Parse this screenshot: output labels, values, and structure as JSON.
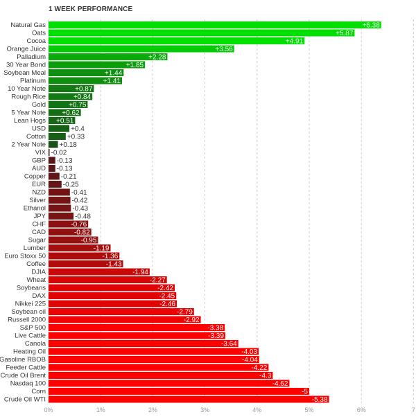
{
  "chart_data": {
    "type": "bar",
    "orientation": "horizontal",
    "title": "1 WEEK PERFORMANCE",
    "xlim": [
      0,
      7
    ],
    "x_ticks": [
      "0%",
      "1%",
      "2%",
      "3%",
      "4%",
      "5%",
      "6%",
      "7"
    ],
    "grid": true,
    "categories": [
      "Natural Gas",
      "Oats",
      "Cocoa",
      "Orange Juice",
      "Palladium",
      "30 Year Bond",
      "Soybean Meal",
      "Platinum",
      "10 Year Note",
      "Rough Rice",
      "Gold",
      "5 Year Note",
      "Lean Hogs",
      "USD",
      "Cotton",
      "2 Year Note",
      "VIX",
      "GBP",
      "AUD",
      "Copper",
      "EUR",
      "NZD",
      "Silver",
      "Ethanol",
      "JPY",
      "CHF",
      "CAD",
      "Sugar",
      "Lumber",
      "Euro Stoxx 50",
      "Coffee",
      "DJIA",
      "Wheat",
      "Soybeans",
      "DAX",
      "Nikkei 225",
      "Soybean oil",
      "Russell 2000",
      "S&P 500",
      "Live Cattle",
      "Canola",
      "Heating Oil",
      "Gasoline RBOB",
      "Feeder Cattle",
      "Crude Oil Brent",
      "Nasdaq 100",
      "Corn",
      "Crude Oil WTI"
    ],
    "values": [
      6.38,
      5.87,
      4.91,
      3.56,
      2.28,
      1.85,
      1.44,
      1.41,
      0.87,
      0.84,
      0.75,
      0.62,
      0.51,
      0.4,
      0.33,
      0.18,
      -0.02,
      -0.13,
      -0.13,
      -0.21,
      -0.25,
      -0.41,
      -0.42,
      -0.43,
      -0.48,
      -0.76,
      -0.82,
      -0.95,
      -1.19,
      -1.36,
      -1.43,
      -1.94,
      -2.27,
      -2.42,
      -2.45,
      -2.46,
      -2.79,
      -2.92,
      -3.38,
      -3.39,
      -3.64,
      -4.03,
      -4.04,
      -4.22,
      -4.3,
      -4.62,
      -5,
      -5.38
    ],
    "value_labels": [
      "+6.38",
      "+5.87",
      "+4.91",
      "+3.56",
      "+2.28",
      "+1.85",
      "+1.44",
      "+1.41",
      "+0.87",
      "+0.84",
      "+0.75",
      "+0.62",
      "+0.51",
      "+0.4",
      "+0.33",
      "+0.18",
      "-0.02",
      "-0.13",
      "-0.13",
      "-0.21",
      "-0.25",
      "-0.41",
      "-0.42",
      "-0.43",
      "-0.48",
      "-0.76",
      "-0.82",
      "-0.95",
      "-1.19",
      "-1.36",
      "-1.43",
      "-1.94",
      "-2.27",
      "-2.42",
      "-2.45",
      "-2.46",
      "-2.79",
      "-2.92",
      "-3.38",
      "-3.39",
      "-3.64",
      "-4.03",
      "-4.04",
      "-4.22",
      "-4.3",
      "-4.62",
      "-5",
      "-5.38"
    ],
    "colors": {
      "positive_strong": "#00e000",
      "positive_weak": "#1e3a1e",
      "negative_weak": "#3a1c1c",
      "negative_strong": "#ff0000",
      "grid": "#cccccc",
      "axis_text": "#999999",
      "label_text": "#333333",
      "value_text": "#ffffff"
    }
  }
}
